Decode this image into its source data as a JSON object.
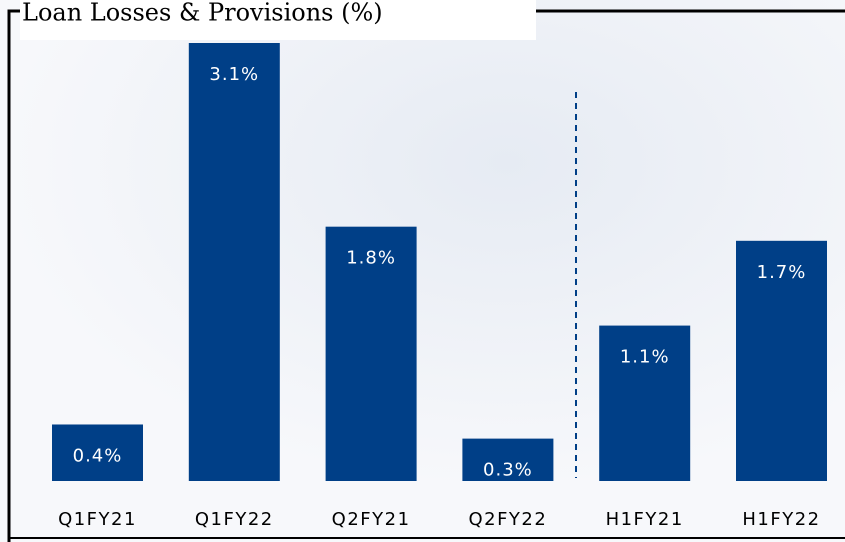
{
  "chart_data": {
    "type": "bar",
    "title": "Loan Losses & Provisions (%)",
    "categories": [
      "Q1FY21",
      "Q1FY22",
      "Q2FY21",
      "Q2FY22",
      "H1FY21",
      "H1FY22"
    ],
    "values": [
      0.4,
      3.1,
      1.8,
      0.3,
      1.1,
      1.7
    ],
    "value_labels": [
      "0.4%",
      "3.1%",
      "1.8%",
      "0.3%",
      "1.1%",
      "1.7%"
    ],
    "color": "#003f87"
  }
}
